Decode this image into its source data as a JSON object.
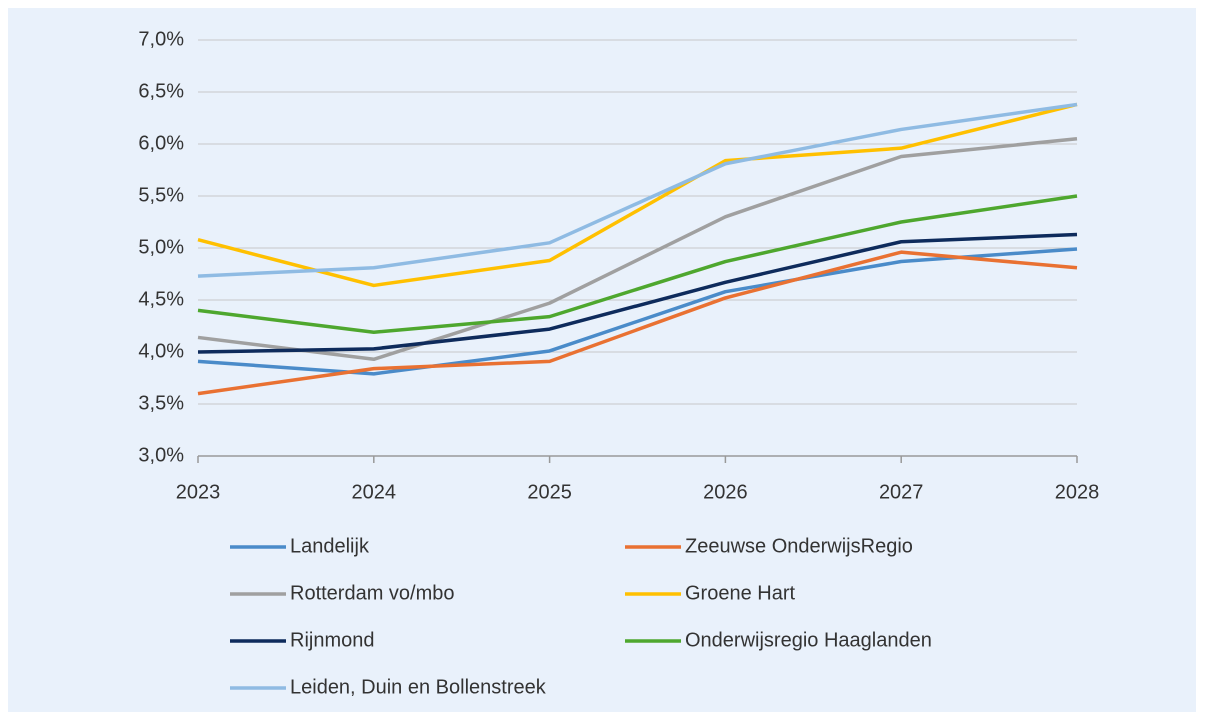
{
  "chart_data": {
    "type": "line",
    "categories": [
      "2023",
      "2024",
      "2025",
      "2026",
      "2027",
      "2028"
    ],
    "series": [
      {
        "name": "Landelijk",
        "color": "#4a8bc9",
        "values": [
          3.91,
          3.79,
          4.01,
          4.58,
          4.87,
          4.99
        ]
      },
      {
        "name": "Zeeuwse OnderwijsRegio",
        "color": "#e97132",
        "values": [
          3.6,
          3.84,
          3.91,
          4.52,
          4.96,
          4.81
        ]
      },
      {
        "name": "Rotterdam vo/mbo",
        "color": "#a0a0a0",
        "values": [
          4.14,
          3.93,
          4.47,
          5.3,
          5.88,
          6.05
        ]
      },
      {
        "name": "Groene Hart",
        "color": "#ffc000",
        "values": [
          5.08,
          4.64,
          4.88,
          5.84,
          5.96,
          6.38
        ]
      },
      {
        "name": "Rijnmond",
        "color": "#0e2b5c",
        "values": [
          4.0,
          4.03,
          4.22,
          4.67,
          5.06,
          5.13
        ]
      },
      {
        "name": "Onderwijsregio Haaglanden",
        "color": "#4ea72e",
        "values": [
          4.4,
          4.19,
          4.34,
          4.87,
          5.25,
          5.5
        ]
      },
      {
        "name": "Leiden, Duin en Bollenstreek",
        "color": "#8fbbe3",
        "values": [
          4.73,
          4.81,
          5.05,
          5.81,
          6.14,
          6.38
        ]
      }
    ],
    "ylim": [
      3.0,
      7.0
    ],
    "yticks": [
      {
        "value": 3.0,
        "label": "3,0%"
      },
      {
        "value": 3.5,
        "label": "3,5%"
      },
      {
        "value": 4.0,
        "label": "4,0%"
      },
      {
        "value": 4.5,
        "label": "4,5%"
      },
      {
        "value": 5.0,
        "label": "5,0%"
      },
      {
        "value": 5.5,
        "label": "5,5%"
      },
      {
        "value": 6.0,
        "label": "6,0%"
      },
      {
        "value": 6.5,
        "label": "6,5%"
      },
      {
        "value": 7.0,
        "label": "7,0%"
      }
    ],
    "grid": true,
    "legend": "bottom"
  }
}
